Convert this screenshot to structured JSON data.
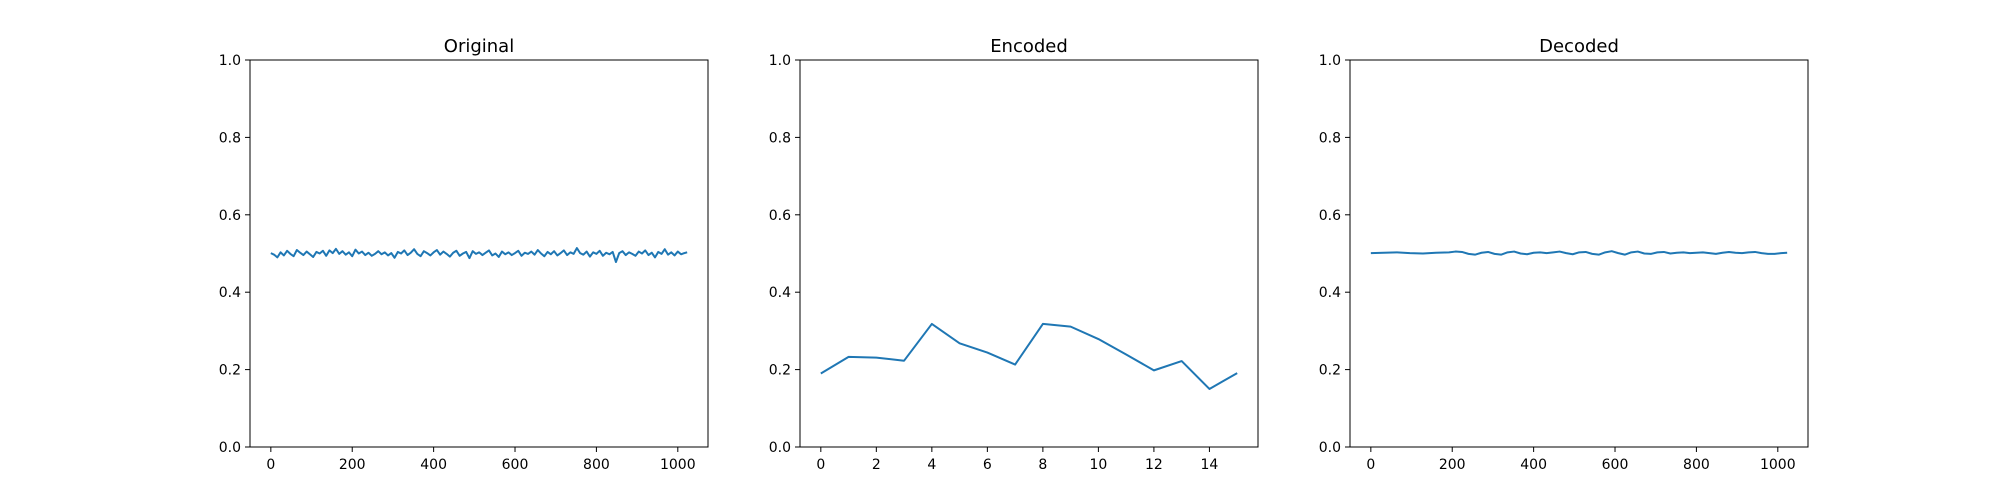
{
  "chart_data": [
    {
      "type": "line",
      "title": "Original",
      "xlabel": "",
      "ylabel": "",
      "xlim": [
        -51.2,
        1074.2
      ],
      "ylim": [
        0,
        1
      ],
      "xticks": [
        0,
        200,
        400,
        600,
        800,
        1000
      ],
      "yticks": [
        0.0,
        0.2,
        0.4,
        0.6,
        0.8,
        1.0
      ],
      "grid": false,
      "color": "#1f77b4",
      "series": [
        {
          "x": [
            0,
            8,
            16,
            24,
            32,
            40,
            48,
            56,
            64,
            72,
            80,
            88,
            96,
            104,
            112,
            120,
            128,
            136,
            144,
            152,
            160,
            168,
            176,
            184,
            192,
            200,
            208,
            216,
            224,
            232,
            240,
            248,
            256,
            264,
            272,
            280,
            288,
            296,
            304,
            312,
            320,
            328,
            336,
            344,
            352,
            360,
            368,
            376,
            384,
            392,
            400,
            408,
            416,
            424,
            432,
            440,
            448,
            456,
            464,
            472,
            480,
            488,
            496,
            504,
            512,
            520,
            528,
            536,
            544,
            552,
            560,
            568,
            576,
            584,
            592,
            600,
            608,
            616,
            624,
            632,
            640,
            648,
            656,
            664,
            672,
            680,
            688,
            696,
            704,
            712,
            720,
            728,
            736,
            744,
            752,
            760,
            768,
            776,
            784,
            792,
            800,
            808,
            816,
            824,
            832,
            840,
            848,
            856,
            864,
            872,
            880,
            888,
            896,
            904,
            912,
            920,
            928,
            936,
            944,
            952,
            960,
            968,
            976,
            984,
            992,
            1000,
            1008,
            1016,
            1023
          ],
          "y": [
            0.501,
            0.497,
            0.49,
            0.503,
            0.495,
            0.507,
            0.499,
            0.493,
            0.509,
            0.502,
            0.496,
            0.505,
            0.498,
            0.491,
            0.504,
            0.5,
            0.507,
            0.494,
            0.508,
            0.501,
            0.512,
            0.499,
            0.506,
            0.497,
            0.503,
            0.493,
            0.51,
            0.5,
            0.505,
            0.496,
            0.502,
            0.494,
            0.499,
            0.506,
            0.498,
            0.503,
            0.495,
            0.501,
            0.489,
            0.504,
            0.5,
            0.508,
            0.496,
            0.502,
            0.511,
            0.499,
            0.493,
            0.506,
            0.501,
            0.495,
            0.503,
            0.509,
            0.497,
            0.505,
            0.499,
            0.492,
            0.502,
            0.507,
            0.494,
            0.5,
            0.504,
            0.488,
            0.506,
            0.499,
            0.503,
            0.496,
            0.502,
            0.508,
            0.495,
            0.5,
            0.491,
            0.505,
            0.498,
            0.503,
            0.496,
            0.501,
            0.507,
            0.494,
            0.502,
            0.499,
            0.505,
            0.497,
            0.509,
            0.5,
            0.493,
            0.504,
            0.498,
            0.506,
            0.495,
            0.501,
            0.508,
            0.496,
            0.503,
            0.499,
            0.514,
            0.501,
            0.497,
            0.505,
            0.492,
            0.503,
            0.499,
            0.507,
            0.494,
            0.502,
            0.498,
            0.504,
            0.478,
            0.501,
            0.506,
            0.496,
            0.503,
            0.499,
            0.494,
            0.505,
            0.5,
            0.508,
            0.496,
            0.502,
            0.49,
            0.504,
            0.499,
            0.511,
            0.497,
            0.503,
            0.495,
            0.505,
            0.498,
            0.501,
            0.503
          ]
        }
      ]
    },
    {
      "type": "line",
      "title": "Encoded",
      "xlabel": "",
      "ylabel": "",
      "xlim": [
        -0.75,
        15.75
      ],
      "ylim": [
        0,
        1
      ],
      "xticks": [
        0,
        2,
        4,
        6,
        8,
        10,
        12,
        14
      ],
      "yticks": [
        0.0,
        0.2,
        0.4,
        0.6,
        0.8,
        1.0
      ],
      "grid": false,
      "color": "#1f77b4",
      "series": [
        {
          "x": [
            0,
            1,
            2,
            3,
            4,
            5,
            6,
            7,
            8,
            9,
            10,
            11,
            12,
            13,
            14,
            15
          ],
          "y": [
            0.19,
            0.233,
            0.231,
            0.223,
            0.318,
            0.268,
            0.244,
            0.213,
            0.318,
            0.311,
            0.279,
            0.239,
            0.198,
            0.222,
            0.15,
            0.191
          ]
        }
      ]
    },
    {
      "type": "line",
      "title": "Decoded",
      "xlabel": "",
      "ylabel": "",
      "xlim": [
        -51.2,
        1074.2
      ],
      "ylim": [
        0,
        1
      ],
      "xticks": [
        0,
        200,
        400,
        600,
        800,
        1000
      ],
      "yticks": [
        0.0,
        0.2,
        0.4,
        0.6,
        0.8,
        1.0
      ],
      "grid": false,
      "color": "#1f77b4",
      "series": [
        {
          "x": [
            0,
            32,
            64,
            96,
            128,
            160,
            192,
            208,
            224,
            240,
            256,
            272,
            288,
            304,
            320,
            336,
            352,
            368,
            384,
            400,
            416,
            432,
            448,
            464,
            480,
            496,
            512,
            528,
            544,
            560,
            576,
            592,
            608,
            624,
            640,
            656,
            672,
            688,
            704,
            720,
            736,
            752,
            768,
            784,
            800,
            816,
            832,
            848,
            864,
            880,
            896,
            912,
            928,
            944,
            960,
            976,
            992,
            1008,
            1023
          ],
          "y": [
            0.501,
            0.502,
            0.503,
            0.501,
            0.5,
            0.502,
            0.503,
            0.505,
            0.504,
            0.499,
            0.497,
            0.502,
            0.504,
            0.499,
            0.497,
            0.503,
            0.505,
            0.5,
            0.498,
            0.502,
            0.503,
            0.501,
            0.503,
            0.505,
            0.501,
            0.498,
            0.503,
            0.504,
            0.499,
            0.497,
            0.503,
            0.506,
            0.501,
            0.497,
            0.503,
            0.505,
            0.5,
            0.499,
            0.503,
            0.504,
            0.5,
            0.502,
            0.503,
            0.501,
            0.502,
            0.503,
            0.501,
            0.499,
            0.502,
            0.504,
            0.502,
            0.501,
            0.503,
            0.504,
            0.501,
            0.499,
            0.499,
            0.501,
            0.502
          ]
        }
      ]
    }
  ]
}
